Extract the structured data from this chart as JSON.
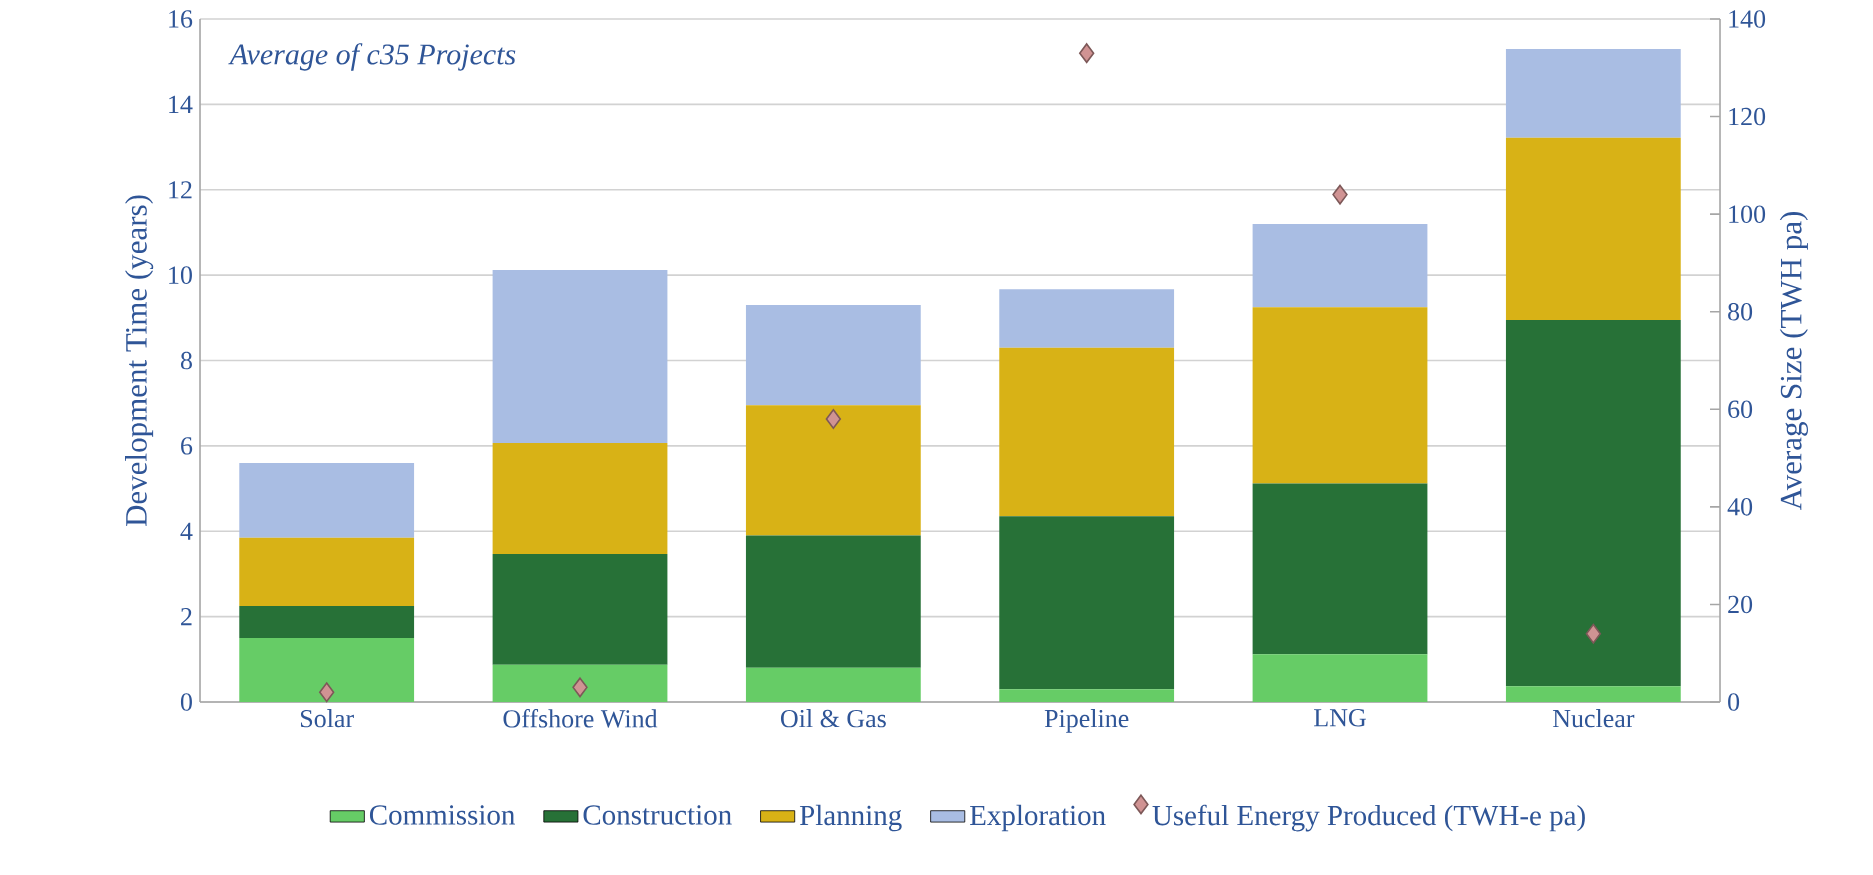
{
  "chart_data": {
    "type": "bar",
    "stacked": true,
    "categories": [
      "Solar",
      "Offshore Wind",
      "Oil & Gas",
      "Pipeline",
      "LNG",
      "Nuclear"
    ],
    "series": [
      {
        "name": "Commission",
        "color": "#66cc66",
        "values": [
          1.5,
          0.87,
          0.8,
          0.3,
          1.12,
          0.37
        ]
      },
      {
        "name": "Construction",
        "color": "#277137",
        "values": [
          0.75,
          2.6,
          3.1,
          4.05,
          4.0,
          8.58
        ]
      },
      {
        "name": "Planning",
        "color": "#d8b216",
        "values": [
          1.6,
          2.6,
          3.05,
          3.95,
          4.13,
          4.27
        ]
      },
      {
        "name": "Exploration",
        "color": "#a9bde3",
        "values": [
          1.75,
          4.05,
          2.35,
          1.37,
          1.95,
          2.08
        ]
      },
      {
        "name": "Useful Energy Produced (TWH-e pa)",
        "color": "#d09393",
        "type": "scatter",
        "axis": "y2",
        "marker": "diamond",
        "values": [
          2,
          3,
          58,
          133,
          104,
          14
        ]
      }
    ],
    "ylabel": "Development Time (years)",
    "y2label": "Average Size (TWH pa)",
    "ylim": [
      0,
      16
    ],
    "yticks": [
      0,
      2,
      4,
      6,
      8,
      10,
      12,
      14,
      16
    ],
    "y2lim": [
      0,
      140
    ],
    "y2ticks": [
      0,
      20,
      40,
      60,
      80,
      100,
      120,
      140
    ],
    "grid": "y",
    "legend": "bottom",
    "annotations": [
      "*Average of c35 Projects*"
    ]
  }
}
